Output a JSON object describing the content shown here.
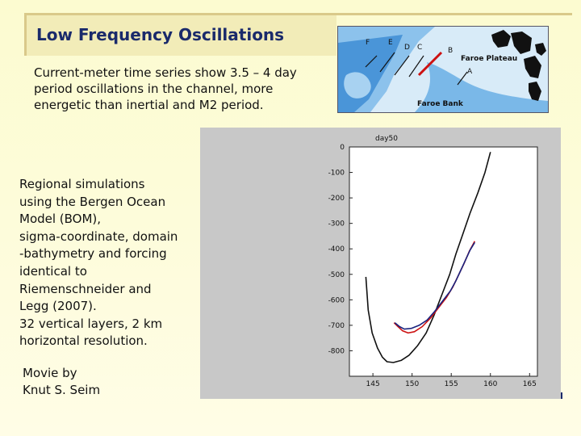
{
  "slide": {
    "title": "Low Frequency Oscillations",
    "intro_text": "Current-meter time series show 3.5 – 4 day period oscillations in the channel, more energetic than inertial and M2 period.",
    "regional_lines": [
      "Regional simulations",
      "using the Bergen Ocean",
      "Model (BOM),",
      "sigma-coordinate, domain",
      "-bathymetry and forcing",
      "identical to",
      "Riemenschneider and",
      "Legg (2007).",
      "32 vertical layers, 2 km",
      "horizontal resolution."
    ],
    "movie_lines": [
      "Movie by",
      "Knut S. Seim"
    ]
  },
  "map": {
    "labels": {
      "f": "F",
      "e": "E",
      "d": "D",
      "c": "C",
      "b": "B",
      "a": "A",
      "plateau": "Faroe Plateau",
      "bank": "Faroe Bank"
    },
    "colors": {
      "deep": "#3f8fd6",
      "mid": "#7ab8e8",
      "shallow": "#cfe4f4",
      "section": "#cc1111"
    }
  },
  "chart_data": {
    "type": "line",
    "title": "day50",
    "xlabel": "",
    "ylabel": "",
    "xlim": [
      142,
      166
    ],
    "ylim": [
      -900,
      0
    ],
    "xticks": [
      145,
      150,
      155,
      160,
      165
    ],
    "yticks": [
      0,
      -100,
      -200,
      -300,
      -400,
      -500,
      -600,
      -700,
      -800
    ],
    "grid": false,
    "series": [
      {
        "color": "#111111",
        "x": [
          160.0,
          159.3,
          158.4,
          157.4,
          156.5,
          155.6,
          154.8,
          153.8,
          152.8,
          151.8,
          150.7,
          149.6,
          148.6,
          147.6,
          146.8,
          146.2,
          145.6,
          144.9,
          144.4,
          144.1
        ],
        "y": [
          -20,
          -100,
          -180,
          -260,
          -340,
          -420,
          -500,
          -580,
          -660,
          -730,
          -780,
          -818,
          -838,
          -846,
          -843,
          -825,
          -790,
          -730,
          -640,
          -510
        ]
      },
      {
        "color": "#cc1111",
        "x": [
          158.0,
          157.3,
          156.6,
          155.9,
          155.2,
          154.4,
          153.4,
          152.4,
          151.3,
          150.3,
          149.5,
          148.8,
          148.2,
          147.7
        ],
        "y": [
          -370,
          -410,
          -460,
          -505,
          -550,
          -590,
          -630,
          -670,
          -705,
          -725,
          -730,
          -722,
          -705,
          -690
        ]
      },
      {
        "color": "#1a237e",
        "x": [
          158.0,
          157.4,
          156.8,
          156.2,
          155.6,
          154.9,
          153.9,
          152.9,
          151.9,
          150.9,
          149.9,
          149.0,
          148.4,
          147.8
        ],
        "y": [
          -375,
          -405,
          -445,
          -485,
          -525,
          -565,
          -605,
          -645,
          -680,
          -700,
          -712,
          -715,
          -705,
          -690
        ]
      }
    ]
  }
}
